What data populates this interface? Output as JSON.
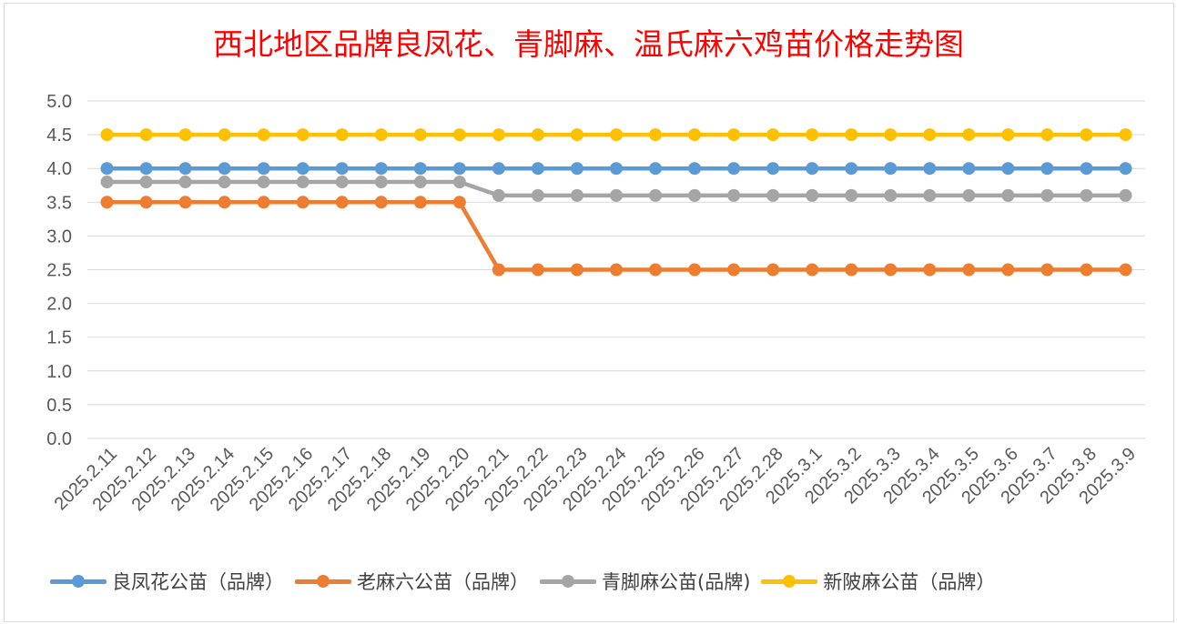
{
  "chart_data": {
    "type": "line",
    "title": "西北地区品牌良凤花、青脚麻、温氏麻六鸡苗价格走势图",
    "categories": [
      "2025.2.11",
      "2025.2.12",
      "2025.2.13",
      "2025.2.14",
      "2025.2.15",
      "2025.2.16",
      "2025.2.17",
      "2025.2.18",
      "2025.2.19",
      "2025.2.20",
      "2025.2.21",
      "2025.2.22",
      "2025.2.23",
      "2025.2.24",
      "2025.2.25",
      "2025.2.26",
      "2025.2.27",
      "2025.2.28",
      "2025.3.1",
      "2025.3.2",
      "2025.3.3",
      "2025.3.4",
      "2025.3.5",
      "2025.3.6",
      "2025.3.7",
      "2025.3.8",
      "2025.3.9"
    ],
    "ylim": [
      0,
      5
    ],
    "yticks": [
      "0.0",
      "0.5",
      "1.0",
      "1.5",
      "2.0",
      "2.5",
      "3.0",
      "3.5",
      "4.0",
      "4.5",
      "5.0"
    ],
    "grid": true,
    "legend_position": "bottom",
    "series": [
      {
        "name": "良凤花公苗（品牌）",
        "color": "#5b9bd5",
        "values": [
          4.0,
          4.0,
          4.0,
          4.0,
          4.0,
          4.0,
          4.0,
          4.0,
          4.0,
          4.0,
          4.0,
          4.0,
          4.0,
          4.0,
          4.0,
          4.0,
          4.0,
          4.0,
          4.0,
          4.0,
          4.0,
          4.0,
          4.0,
          4.0,
          4.0,
          4.0,
          4.0
        ]
      },
      {
        "name": "老麻六公苗（品牌）",
        "color": "#ed7d31",
        "values": [
          3.5,
          3.5,
          3.5,
          3.5,
          3.5,
          3.5,
          3.5,
          3.5,
          3.5,
          3.5,
          2.5,
          2.5,
          2.5,
          2.5,
          2.5,
          2.5,
          2.5,
          2.5,
          2.5,
          2.5,
          2.5,
          2.5,
          2.5,
          2.5,
          2.5,
          2.5,
          2.5
        ]
      },
      {
        "name": "青脚麻公苗(品牌)",
        "color": "#a5a5a5",
        "values": [
          3.8,
          3.8,
          3.8,
          3.8,
          3.8,
          3.8,
          3.8,
          3.8,
          3.8,
          3.8,
          3.6,
          3.6,
          3.6,
          3.6,
          3.6,
          3.6,
          3.6,
          3.6,
          3.6,
          3.6,
          3.6,
          3.6,
          3.6,
          3.6,
          3.6,
          3.6,
          3.6
        ]
      },
      {
        "name": "新陂麻公苗（品牌）",
        "color": "#ffc000",
        "values": [
          4.5,
          4.5,
          4.5,
          4.5,
          4.5,
          4.5,
          4.5,
          4.5,
          4.5,
          4.5,
          4.5,
          4.5,
          4.5,
          4.5,
          4.5,
          4.5,
          4.5,
          4.5,
          4.5,
          4.5,
          4.5,
          4.5,
          4.5,
          4.5,
          4.5,
          4.5,
          4.5
        ]
      }
    ]
  }
}
